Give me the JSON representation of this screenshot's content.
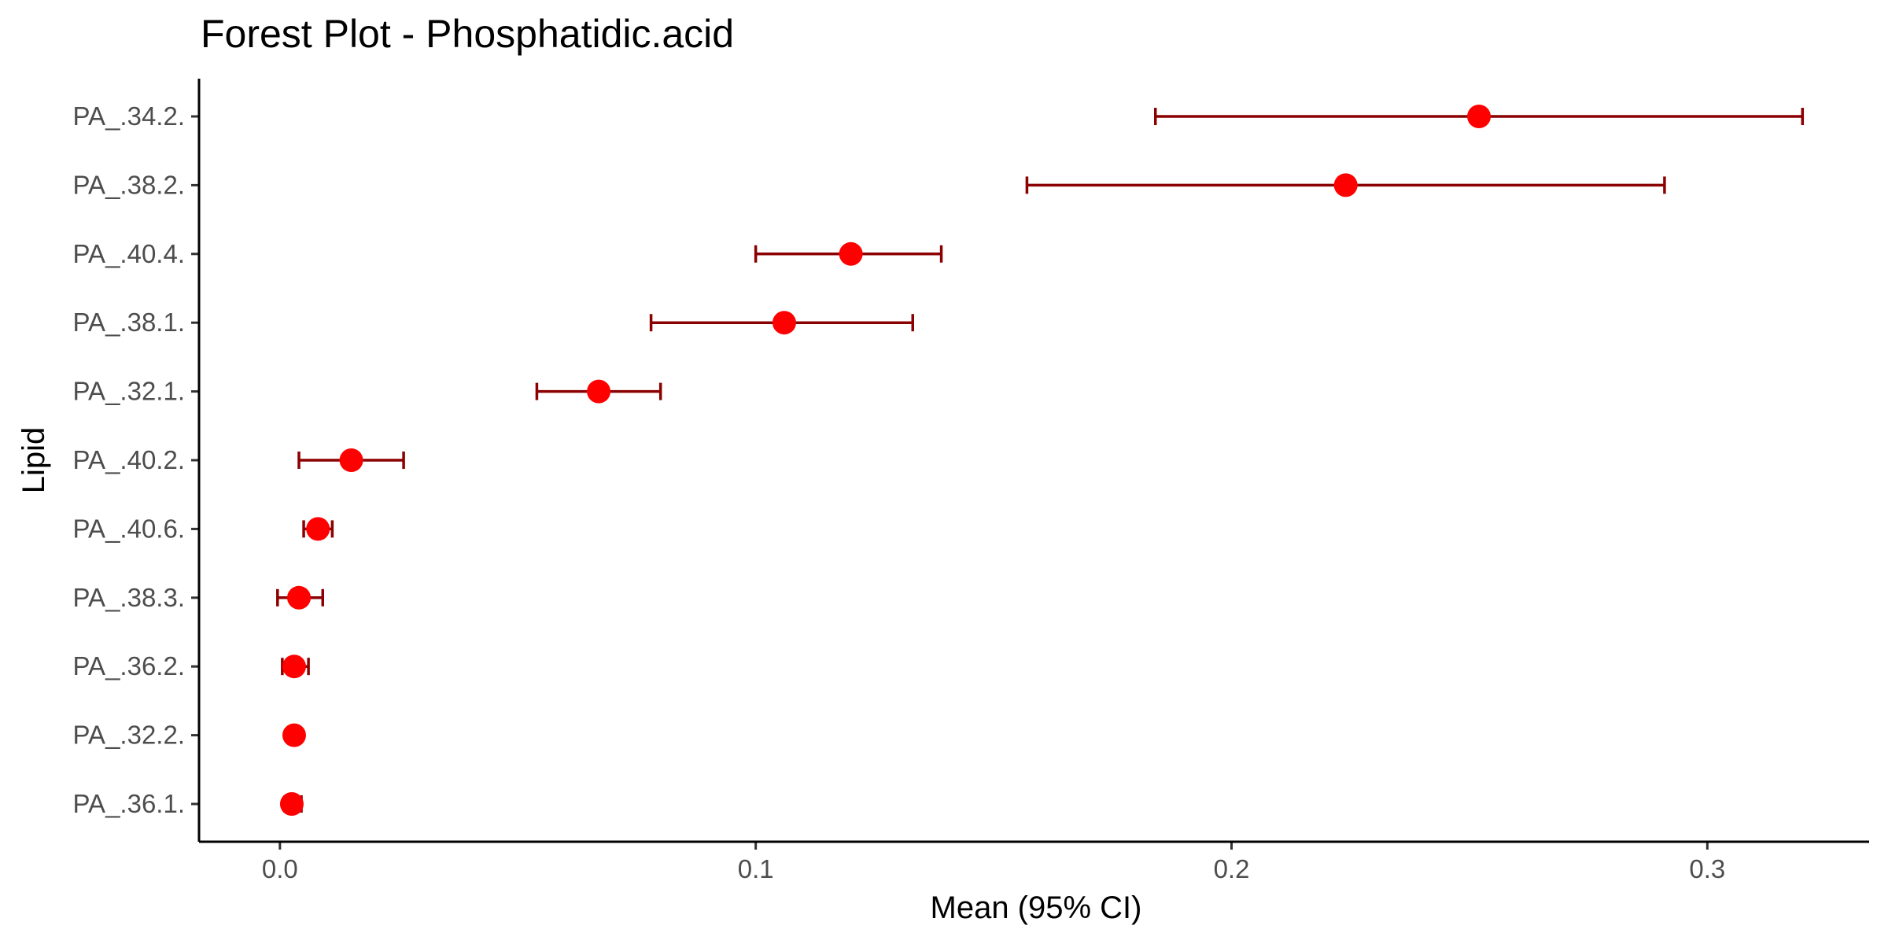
{
  "chart_data": {
    "type": "scatter",
    "title": "Forest Plot - Phosphatidic.acid",
    "xlabel": "Mean (95% CI)",
    "ylabel": "Lipid",
    "xlim": [
      -0.017,
      0.334
    ],
    "xticks": [
      0.0,
      0.1,
      0.2,
      0.3
    ],
    "xtick_labels": [
      "0.0",
      "0.1",
      "0.2",
      "0.3"
    ],
    "grid": false,
    "legend": "none",
    "point_color": "#ff0000",
    "ci_color": "#8b0000",
    "categories": [
      "PA_.34.2.",
      "PA_.38.2.",
      "PA_.40.4.",
      "PA_.38.1.",
      "PA_.32.1.",
      "PA_.40.2.",
      "PA_.40.6.",
      "PA_.38.3.",
      "PA_.36.2.",
      "PA_.32.2.",
      "PA_.36.1."
    ],
    "series": [
      {
        "mean": [
          0.252,
          0.224,
          0.12,
          0.106,
          0.067,
          0.015,
          0.008,
          0.004,
          0.003,
          0.003,
          0.0025
        ],
        "lower": [
          0.184,
          0.157,
          0.1,
          0.078,
          0.054,
          0.004,
          0.005,
          -0.0005,
          0.0005,
          0.002,
          0.001
        ],
        "upper": [
          0.32,
          0.291,
          0.139,
          0.133,
          0.08,
          0.026,
          0.011,
          0.009,
          0.006,
          0.004,
          0.0045
        ]
      }
    ]
  }
}
